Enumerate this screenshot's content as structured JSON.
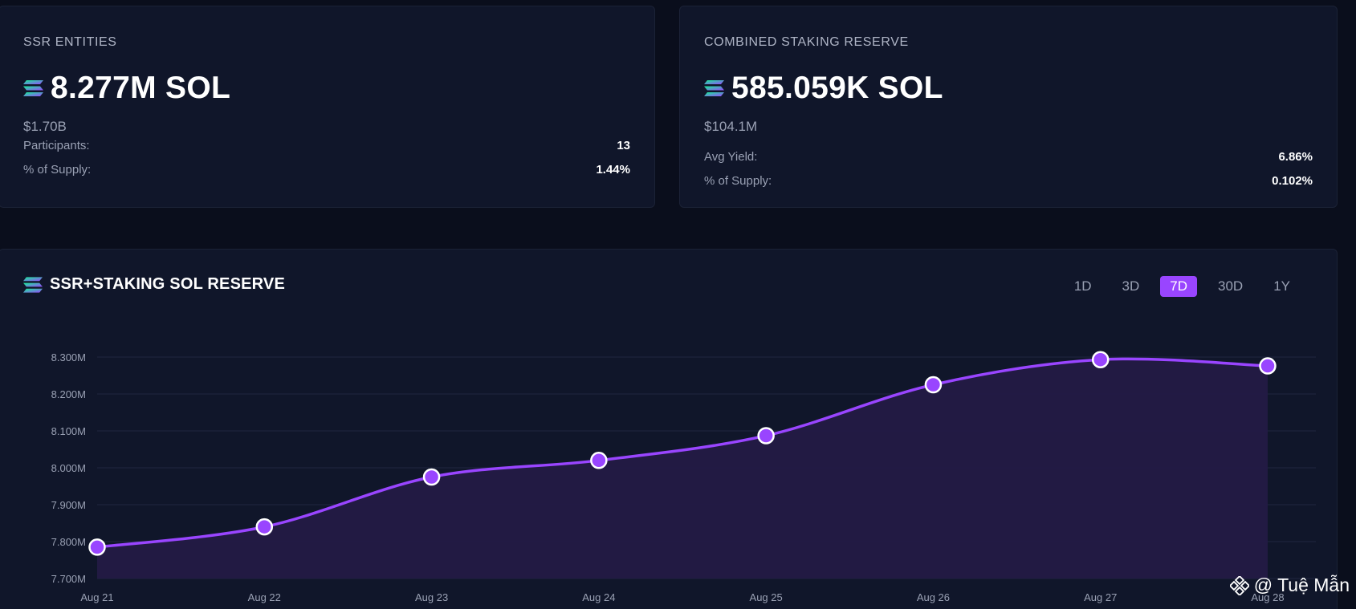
{
  "ssr_card": {
    "title": "SSR ENTITIES",
    "value": "8.277M SOL",
    "usd": "$1.70B",
    "rows": [
      {
        "label": "Participants:",
        "value": "13"
      },
      {
        "label": "% of Supply:",
        "value": "1.44%"
      }
    ]
  },
  "csr_card": {
    "title": "COMBINED STAKING RESERVE",
    "value": "585.059K SOL",
    "usd": "$104.1M",
    "rows": [
      {
        "label": "Avg Yield:",
        "value": "6.86%"
      },
      {
        "label": "% of Supply:",
        "value": "0.102%"
      }
    ]
  },
  "chart_panel": {
    "title": "SSR+STAKING SOL RESERVE",
    "ranges": [
      "1D",
      "3D",
      "7D",
      "30D",
      "1Y"
    ],
    "active_range": "7D"
  },
  "chart_data": {
    "type": "area",
    "title": "SSR+STAKING SOL RESERVE",
    "x": [
      "Aug 21",
      "Aug 22",
      "Aug 23",
      "Aug 24",
      "Aug 25",
      "Aug 26",
      "Aug 27",
      "Aug 28"
    ],
    "y_ticks": [
      "7.700M",
      "7.800M",
      "7.900M",
      "8.000M",
      "8.100M",
      "8.200M",
      "8.300M"
    ],
    "ylim": [
      7.7,
      8.3
    ],
    "series": [
      {
        "values": [
          7.785,
          7.84,
          7.975,
          8.02,
          8.087,
          8.225,
          8.293,
          8.276
        ]
      }
    ],
    "grid": true,
    "line_color": "#9945ff",
    "fill_color": "#241a45"
  },
  "watermark": {
    "text": "@ Tuệ Mẫn",
    "icon": "binance-diamond-icon"
  }
}
